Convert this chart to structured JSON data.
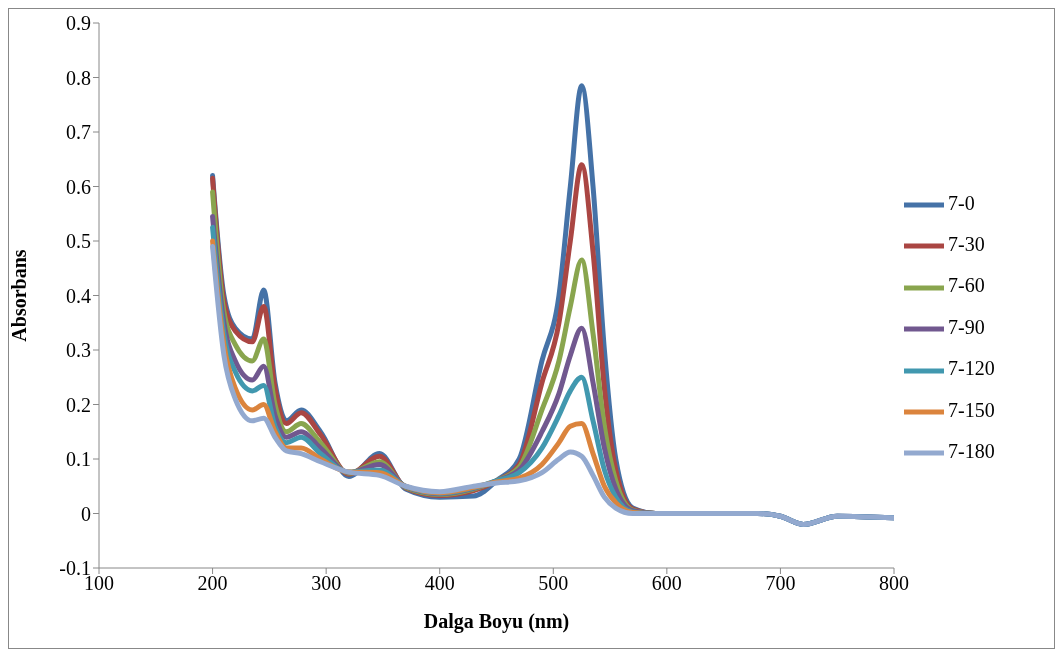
{
  "chart_data": {
    "type": "line",
    "xlabel": "Dalga Boyu (nm)",
    "ylabel": "Absorbans",
    "x": [
      200,
      210,
      220,
      235,
      245,
      255,
      265,
      278,
      295,
      320,
      347,
      370,
      400,
      430,
      450,
      470,
      490,
      505,
      515,
      525,
      535,
      545,
      555,
      570,
      590,
      680,
      700,
      720,
      750,
      800
    ],
    "xlim": [
      100,
      800
    ],
    "xticks": [
      100,
      200,
      300,
      400,
      500,
      600,
      700,
      800
    ],
    "ylim": [
      -0.1,
      0.9
    ],
    "yticks": [
      -0.1,
      0,
      0.1,
      0.2,
      0.3,
      0.4,
      0.5,
      0.6,
      0.7,
      0.8,
      0.9
    ],
    "grid": false,
    "legend": "right",
    "marker": "none",
    "line_style": "solid",
    "series": [
      {
        "name": "7-0",
        "color": "#4572a7",
        "values": [
          0.62,
          0.4,
          0.34,
          0.32,
          0.41,
          0.24,
          0.17,
          0.19,
          0.15,
          0.068,
          0.11,
          0.045,
          0.03,
          0.032,
          0.06,
          0.1,
          0.28,
          0.4,
          0.6,
          0.785,
          0.6,
          0.3,
          0.1,
          0.01,
          0,
          0,
          -0.005,
          -0.02,
          -0.005,
          -0.008
        ]
      },
      {
        "name": "7-30",
        "color": "#aa4643",
        "values": [
          0.615,
          0.39,
          0.335,
          0.315,
          0.38,
          0.23,
          0.165,
          0.185,
          0.145,
          0.072,
          0.105,
          0.047,
          0.033,
          0.042,
          0.06,
          0.09,
          0.24,
          0.35,
          0.5,
          0.64,
          0.48,
          0.23,
          0.08,
          0.008,
          0,
          0,
          null,
          null,
          null,
          null
        ]
      },
      {
        "name": "7-60",
        "color": "#89a54e",
        "values": [
          0.59,
          0.37,
          0.31,
          0.28,
          0.32,
          0.2,
          0.15,
          0.165,
          0.13,
          0.074,
          0.095,
          0.048,
          0.035,
          0.045,
          0.06,
          0.085,
          0.19,
          0.28,
          0.38,
          0.465,
          0.33,
          0.16,
          0.06,
          0.006,
          0,
          0,
          null,
          null,
          null,
          null
        ]
      },
      {
        "name": "7-90",
        "color": "#71588f",
        "values": [
          0.545,
          0.35,
          0.28,
          0.245,
          0.27,
          0.18,
          0.14,
          0.15,
          0.12,
          0.075,
          0.09,
          0.049,
          0.036,
          0.046,
          0.06,
          0.08,
          0.15,
          0.22,
          0.29,
          0.34,
          0.24,
          0.12,
          0.045,
          0.005,
          0,
          0,
          -0.005,
          -0.02,
          -0.005,
          -0.008
        ]
      },
      {
        "name": "7-120",
        "color": "#4198af",
        "values": [
          0.525,
          0.33,
          0.26,
          0.225,
          0.235,
          0.16,
          0.13,
          0.14,
          0.11,
          0.076,
          0.08,
          0.05,
          0.037,
          0.047,
          0.06,
          0.075,
          0.12,
          0.18,
          0.225,
          0.25,
          0.17,
          0.08,
          0.03,
          0.003,
          0,
          0,
          -0.005,
          -0.02,
          -0.005,
          -0.008
        ]
      },
      {
        "name": "7-150",
        "color": "#db843d",
        "values": [
          0.5,
          0.31,
          0.23,
          0.19,
          0.2,
          0.15,
          0.12,
          0.12,
          0.1,
          0.076,
          0.075,
          0.05,
          0.038,
          0.048,
          0.058,
          0.065,
          0.09,
          0.13,
          0.16,
          0.165,
          0.11,
          0.05,
          0.02,
          0.002,
          0,
          null,
          null,
          null,
          null,
          null
        ]
      },
      {
        "name": "7-180",
        "color": "#93a9cf",
        "values": [
          0.49,
          0.29,
          0.21,
          0.17,
          0.175,
          0.14,
          0.115,
          0.11,
          0.095,
          0.076,
          0.07,
          0.05,
          0.04,
          0.05,
          0.056,
          0.06,
          0.075,
          0.1,
          0.113,
          0.105,
          0.07,
          0.03,
          0.01,
          0,
          0,
          0,
          -0.005,
          -0.02,
          -0.005,
          -0.008
        ]
      }
    ]
  }
}
